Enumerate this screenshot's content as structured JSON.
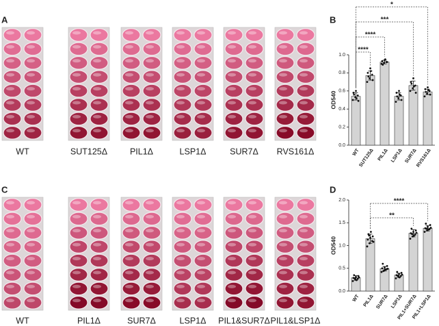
{
  "panel_labels": [
    "A",
    "B",
    "C",
    "D"
  ],
  "photo_rows": [
    {
      "labels": [
        "WT",
        "SUT125Δ",
        "PIL1Δ",
        "LSP1Δ",
        "SUR7Δ",
        "RVS161Δ"
      ]
    },
    {
      "labels": [
        "WT",
        "PIL1Δ",
        "SUR7Δ",
        "LSP1Δ",
        "PIL1&SUR7Δ",
        "PIL1&LSP1Δ"
      ]
    }
  ],
  "chart_data": [
    {
      "type": "bar",
      "ylabel": "OD540",
      "color": "#d4d4d4",
      "categories": [
        "WT",
        "SUT125Δ",
        "PIL1Δ",
        "LSP1Δ",
        "SUR7Δ",
        "RVS161Δ"
      ],
      "values": [
        0.54,
        0.77,
        0.92,
        0.54,
        0.66,
        0.59
      ],
      "errors": [
        0.04,
        0.05,
        0.02,
        0.04,
        0.05,
        0.03
      ],
      "points": [
        [
          0.5,
          0.53,
          0.55,
          0.58,
          0.6,
          0.49,
          0.56,
          0.52
        ],
        [
          0.7,
          0.74,
          0.78,
          0.8,
          0.85,
          0.72,
          0.76,
          0.82
        ],
        [
          0.9,
          0.91,
          0.92,
          0.93,
          0.94,
          0.92,
          0.89,
          0.95
        ],
        [
          0.48,
          0.52,
          0.55,
          0.58,
          0.6,
          0.5,
          0.54,
          0.56
        ],
        [
          0.6,
          0.63,
          0.66,
          0.7,
          0.74,
          0.58,
          0.68,
          0.65
        ],
        [
          0.54,
          0.57,
          0.6,
          0.62,
          0.64,
          0.56,
          0.59,
          0.61
        ]
      ],
      "ylim": [
        0,
        1
      ],
      "yticks": [
        {
          "value": 0,
          "label": "0.0"
        },
        {
          "value": 0.2,
          "label": "0.2"
        },
        {
          "value": 0.4,
          "label": "0.4"
        },
        {
          "value": 0.6,
          "label": "0.6"
        },
        {
          "value": 0.8,
          "label": "0.8"
        },
        {
          "value": 1,
          "label": "1.0"
        }
      ],
      "significance": [
        {
          "between": [
            0,
            5
          ],
          "label": "*"
        },
        {
          "between": [
            0,
            4
          ],
          "label": "***"
        },
        {
          "between": [
            0,
            2
          ],
          "label": "****"
        },
        {
          "between": [
            0,
            1
          ],
          "label": "****"
        }
      ]
    },
    {
      "type": "bar",
      "ylabel": "OD540",
      "color": "#d4d4d4",
      "categories": [
        "WT",
        "PIL1Δ",
        "SUR7Δ",
        "LSP1Δ",
        "PIL1+SUR7Δ",
        "PIL1+LSP1Δ"
      ],
      "values": [
        0.29,
        1.15,
        0.49,
        0.35,
        1.27,
        1.38
      ],
      "errors": [
        0.05,
        0.1,
        0.05,
        0.04,
        0.08,
        0.06
      ],
      "points": [
        [
          0.22,
          0.25,
          0.27,
          0.29,
          0.31,
          0.33,
          0.35,
          0.24,
          0.3,
          0.28
        ],
        [
          0.98,
          1.05,
          1.1,
          1.13,
          1.17,
          1.2,
          1.25,
          1.3,
          1.08,
          1.22
        ],
        [
          0.42,
          0.45,
          0.48,
          0.5,
          0.52,
          0.55,
          0.6,
          0.47,
          0.49,
          0.44
        ],
        [
          0.28,
          0.31,
          0.33,
          0.35,
          0.38,
          0.4,
          0.42,
          0.3,
          0.36,
          0.34
        ],
        [
          1.15,
          1.2,
          1.24,
          1.27,
          1.3,
          1.33,
          1.37,
          1.22,
          1.28,
          1.25
        ],
        [
          1.3,
          1.33,
          1.36,
          1.38,
          1.41,
          1.45,
          1.48,
          1.35,
          1.39,
          1.37
        ]
      ],
      "ylim": [
        0,
        2
      ],
      "yticks": [
        {
          "value": 0,
          "label": "0.0"
        },
        {
          "value": 0.5,
          "label": "0.5"
        },
        {
          "value": 1,
          "label": "1.0"
        },
        {
          "value": 1.5,
          "label": "1.5"
        },
        {
          "value": 2,
          "label": "2.0"
        }
      ],
      "significance": [
        {
          "between": [
            1,
            5
          ],
          "label": "****"
        },
        {
          "between": [
            1,
            4
          ],
          "label": "**"
        }
      ]
    }
  ]
}
